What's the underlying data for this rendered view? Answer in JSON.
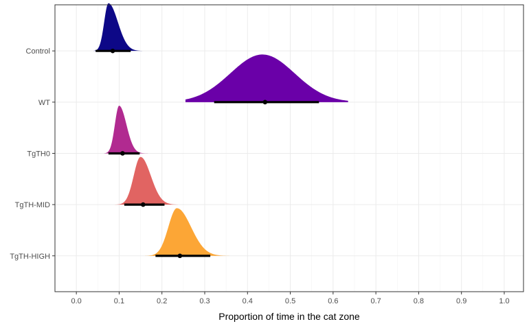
{
  "chart_data": {
    "type": "density-interval",
    "title": "",
    "xlabel": "Proportion of time in the cat zone",
    "ylabel": "",
    "xlim": [
      -0.05,
      1.045
    ],
    "x_ticks": [
      0.0,
      0.1,
      0.2,
      0.3,
      0.4,
      0.5,
      0.6,
      0.7,
      0.8,
      0.9,
      1.0
    ],
    "x_tick_labels": [
      "0.0",
      "0.1",
      "0.2",
      "0.3",
      "0.4",
      "0.5",
      "0.6",
      "0.7",
      "0.8",
      "0.9",
      "1.0"
    ],
    "grid": true,
    "legend": "none",
    "categories": [
      "Control",
      "WT",
      "TgTH0",
      "TgTH-MID",
      "TgTH-HIGH"
    ],
    "series": [
      {
        "category": "Control",
        "color": "#0d0887",
        "point": 0.085,
        "interval": [
          0.045,
          0.127
        ],
        "density_range": [
          0.04,
          0.165
        ],
        "mode": 0.075,
        "sd_left": 0.01,
        "sd_right": 0.022
      },
      {
        "category": "WT",
        "color": "#6a00a8",
        "point": 0.441,
        "interval": [
          0.322,
          0.567
        ],
        "density_range": [
          0.255,
          0.635
        ],
        "mode": 0.435,
        "sd_left": 0.075,
        "sd_right": 0.075
      },
      {
        "category": "TgTH0",
        "color": "#b12a90",
        "point": 0.108,
        "interval": [
          0.075,
          0.148
        ],
        "density_range": [
          0.065,
          0.175
        ],
        "mode": 0.1,
        "sd_left": 0.01,
        "sd_right": 0.017
      },
      {
        "category": "TgTH-MID",
        "color": "#e16462",
        "point": 0.156,
        "interval": [
          0.112,
          0.206
        ],
        "density_range": [
          0.09,
          0.237
        ],
        "mode": 0.15,
        "sd_left": 0.016,
        "sd_right": 0.024
      },
      {
        "category": "TgTH-HIGH",
        "color": "#fca636",
        "point": 0.242,
        "interval": [
          0.185,
          0.313
        ],
        "density_range": [
          0.148,
          0.385
        ],
        "mode": 0.235,
        "sd_left": 0.02,
        "sd_right": 0.033
      }
    ]
  }
}
